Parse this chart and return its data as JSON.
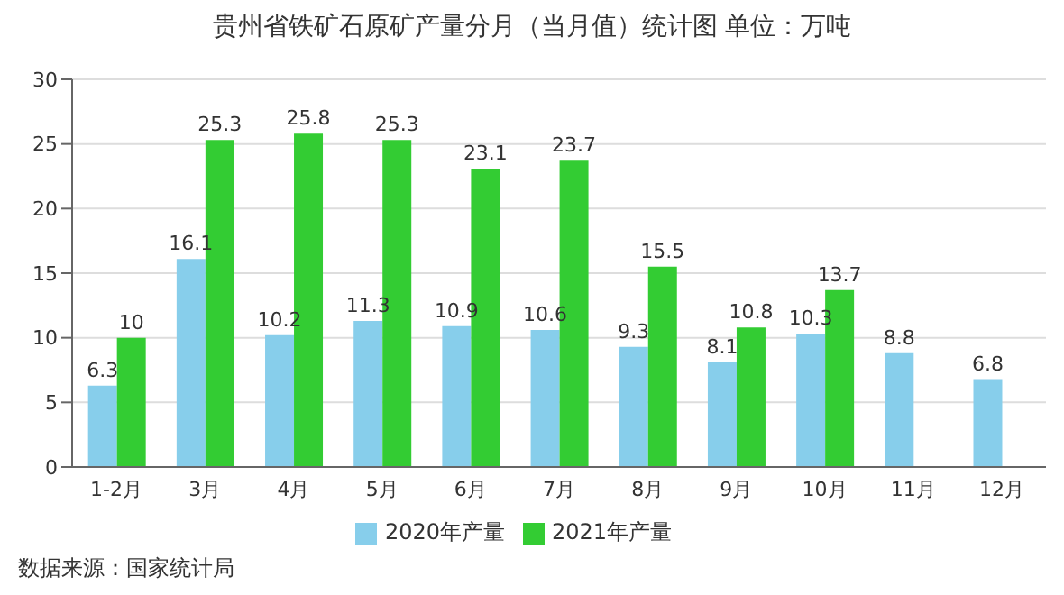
{
  "chart_data": {
    "type": "bar",
    "title": "贵州省铁矿石原矿产量分月（当月值）统计图 单位：万吨",
    "categories": [
      "1-2月",
      "3月",
      "4月",
      "5月",
      "6月",
      "7月",
      "8月",
      "9月",
      "10月",
      "11月",
      "12月"
    ],
    "series": [
      {
        "name": "2020年产量",
        "color": "#87ceeb",
        "values": [
          6.3,
          16.1,
          10.2,
          11.3,
          10.9,
          10.6,
          9.3,
          8.1,
          10.3,
          8.8,
          6.8
        ]
      },
      {
        "name": "2021年产量",
        "color": "#33cc33",
        "values": [
          10,
          25.3,
          25.8,
          25.3,
          23.1,
          23.7,
          15.5,
          10.8,
          13.7,
          null,
          null
        ]
      }
    ],
    "ylim": [
      0,
      30
    ],
    "yticks": [
      0,
      5,
      10,
      15,
      20,
      25,
      30
    ],
    "grid": "y",
    "legend": "bottom",
    "data_labels": true,
    "annotations": [
      "数据来源：国家统计局"
    ]
  }
}
